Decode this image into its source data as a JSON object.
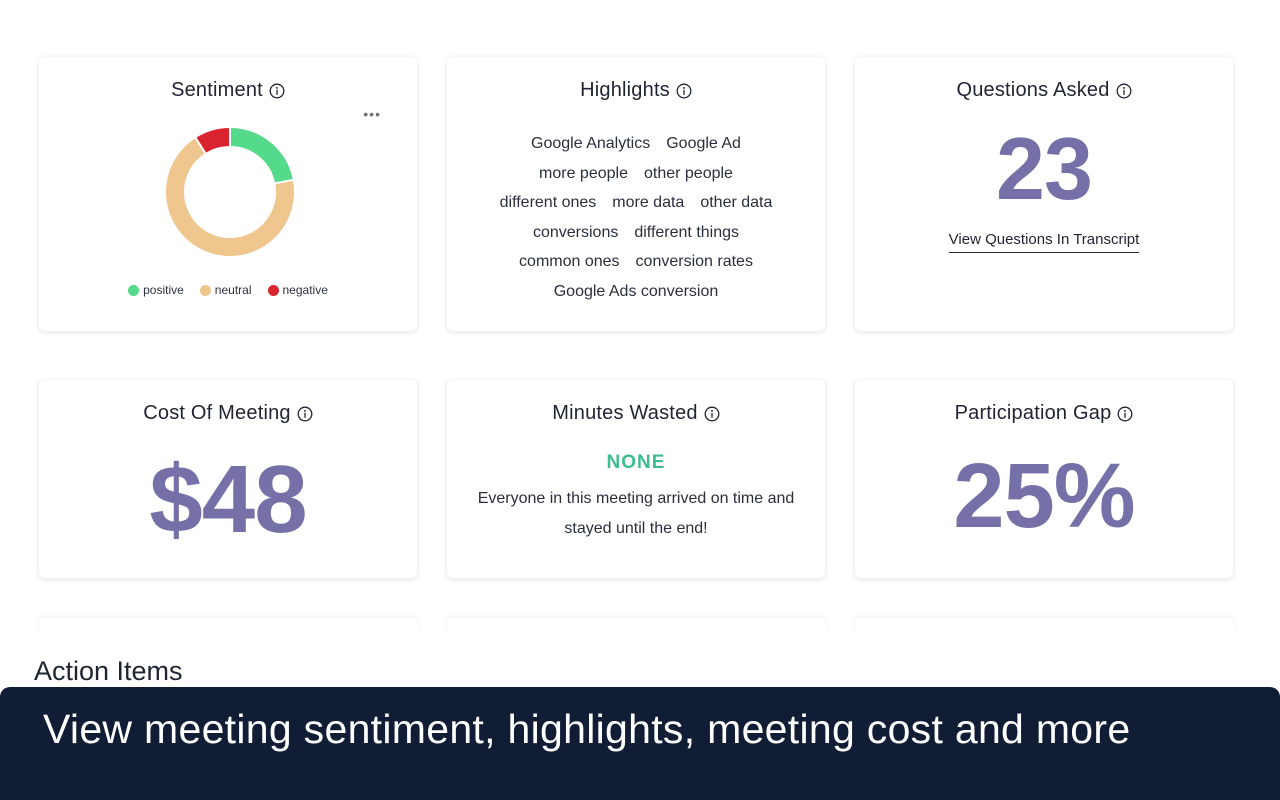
{
  "sentiment": {
    "title": "Sentiment",
    "more_icon": "more-horizontal-icon",
    "chart_data": {
      "type": "pie",
      "labels": [
        "positive",
        "neutral",
        "negative"
      ],
      "values": [
        22,
        69,
        9
      ],
      "colors": [
        "#55d98a",
        "#f0c68f",
        "#d9232e"
      ]
    },
    "legend": [
      {
        "label": "positive",
        "color": "#55d98a"
      },
      {
        "label": "neutral",
        "color": "#f0c68f"
      },
      {
        "label": "negative",
        "color": "#d9232e"
      }
    ]
  },
  "highlights": {
    "title": "Highlights",
    "rows": [
      [
        "Google Analytics",
        "Google Ad"
      ],
      [
        "more people",
        "other people"
      ],
      [
        "different ones",
        "more data",
        "other data"
      ],
      [
        "conversions",
        "different things"
      ],
      [
        "common ones",
        "conversion rates"
      ],
      [
        "Google Ads conversion"
      ]
    ]
  },
  "questions": {
    "title": "Questions Asked",
    "count": "23",
    "link_label": "View Questions In Transcript"
  },
  "cost": {
    "title": "Cost Of Meeting",
    "value": "$48"
  },
  "minutes_wasted": {
    "title": "Minutes Wasted",
    "status": "NONE",
    "message": "Everyone in this meeting arrived on time and stayed until the end!"
  },
  "participation": {
    "title": "Participation Gap",
    "value": "25%"
  },
  "action_items": {
    "title": "Action Items"
  },
  "banner": {
    "text": "View meeting sentiment, highlights, meeting cost and more"
  },
  "colors": {
    "accent_number": "#7670a8",
    "success": "#3dbd8c",
    "banner_bg": "#111d35"
  }
}
